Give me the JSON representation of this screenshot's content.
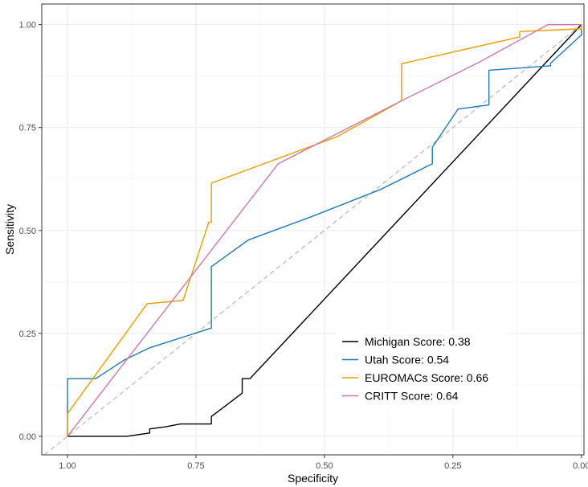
{
  "chart_data": {
    "type": "line",
    "title": "",
    "xlabel": "Specificity",
    "ylabel": "Sensitivity",
    "x_reversed": true,
    "xlim": [
      1.05,
      -0.005
    ],
    "ylim": [
      -0.045,
      1.05
    ],
    "x_ticks": [
      1.0,
      0.75,
      0.5,
      0.25,
      0.0
    ],
    "x_tick_labels": [
      "1.00",
      "0.75",
      "0.50",
      "0.25",
      "0.00"
    ],
    "y_ticks": [
      0.0,
      0.25,
      0.5,
      0.75,
      1.0
    ],
    "y_tick_labels": [
      "0.00",
      "0.25",
      "0.50",
      "0.75",
      "1.00"
    ],
    "grid": true,
    "reference_line": {
      "style": "dashed",
      "color": "#b3b3b3"
    },
    "legend_position": "bottom-right",
    "series": [
      {
        "name": "Michigan Score: 0.38",
        "color": "#000000",
        "x": [
          1.0,
          0.885,
          0.84,
          0.84,
          0.81,
          0.78,
          0.72,
          0.72,
          0.66,
          0.66,
          0.645,
          0.645,
          0.0
        ],
        "y": [
          0.0,
          0.0,
          0.008,
          0.018,
          0.023,
          0.03,
          0.03,
          0.048,
          0.105,
          0.14,
          0.14,
          0.14,
          1.0
        ]
      },
      {
        "name": "Utah Score: 0.54",
        "color": "#1f78b4",
        "x": [
          1.0,
          1.0,
          0.945,
          0.89,
          0.84,
          0.72,
          0.72,
          0.648,
          0.52,
          0.39,
          0.29,
          0.29,
          0.24,
          0.18,
          0.18,
          0.06,
          0.06,
          0.0,
          0.0
        ],
        "y": [
          0.0,
          0.14,
          0.14,
          0.185,
          0.215,
          0.263,
          0.412,
          0.477,
          0.536,
          0.6,
          0.662,
          0.702,
          0.795,
          0.805,
          0.889,
          0.9,
          0.906,
          0.975,
          1.0
        ]
      },
      {
        "name": "EUROMACs Score: 0.66",
        "color": "#e69f00",
        "x": [
          1.0,
          1.0,
          0.845,
          0.775,
          0.725,
          0.72,
          0.72,
          0.475,
          0.35,
          0.35,
          0.12,
          0.12,
          0.0,
          0.0
        ],
        "y": [
          0.0,
          0.055,
          0.322,
          0.33,
          0.52,
          0.52,
          0.615,
          0.728,
          0.815,
          0.905,
          0.97,
          0.983,
          0.99,
          1.0
        ]
      },
      {
        "name": "CRITT Score: 0.64",
        "color": "#cc79a7",
        "x": [
          1.0,
          0.59,
          0.35,
          0.2,
          0.065,
          0.0,
          0.0
        ],
        "y": [
          0.0,
          0.662,
          0.815,
          0.908,
          1.0,
          1.0,
          1.0
        ]
      }
    ]
  }
}
